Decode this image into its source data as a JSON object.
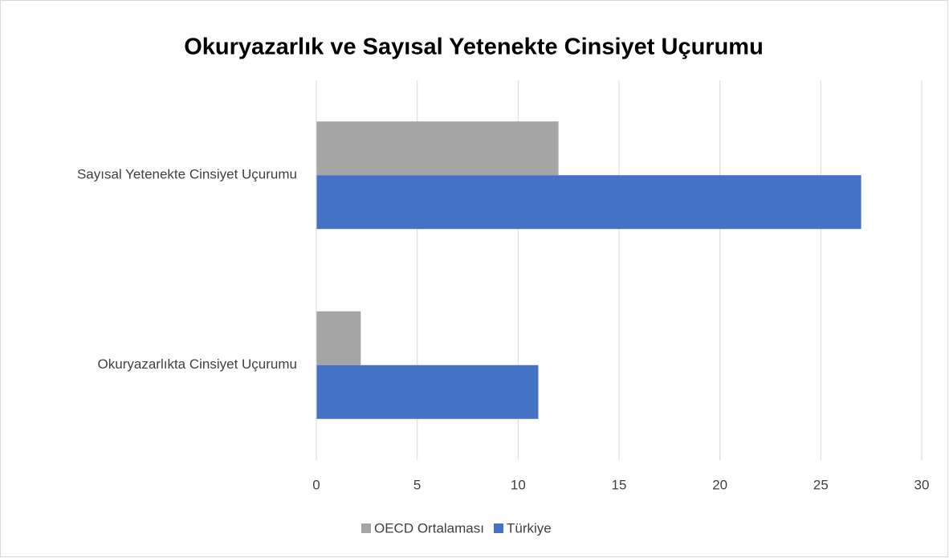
{
  "chart_data": {
    "type": "bar",
    "orientation": "horizontal",
    "title": "Okuryazarlık ve Sayısal Yetenekte Cinsiyet Uçurumu",
    "categories": [
      "Okuryazarlıkta Cinsiyet Uçurumu",
      "Sayısal Yetenekte Cinsiyet Uçurumu"
    ],
    "series": [
      {
        "name": "OECD Ortalaması",
        "color": "#a5a5a5",
        "values": [
          2.2,
          12
        ]
      },
      {
        "name": "Türkiye",
        "color": "#4472c4",
        "values": [
          11,
          27
        ]
      }
    ],
    "xlim": [
      0,
      30
    ],
    "xticks": [
      0,
      5,
      10,
      15,
      20,
      25,
      30
    ],
    "grid": true,
    "legend": "bottom"
  }
}
